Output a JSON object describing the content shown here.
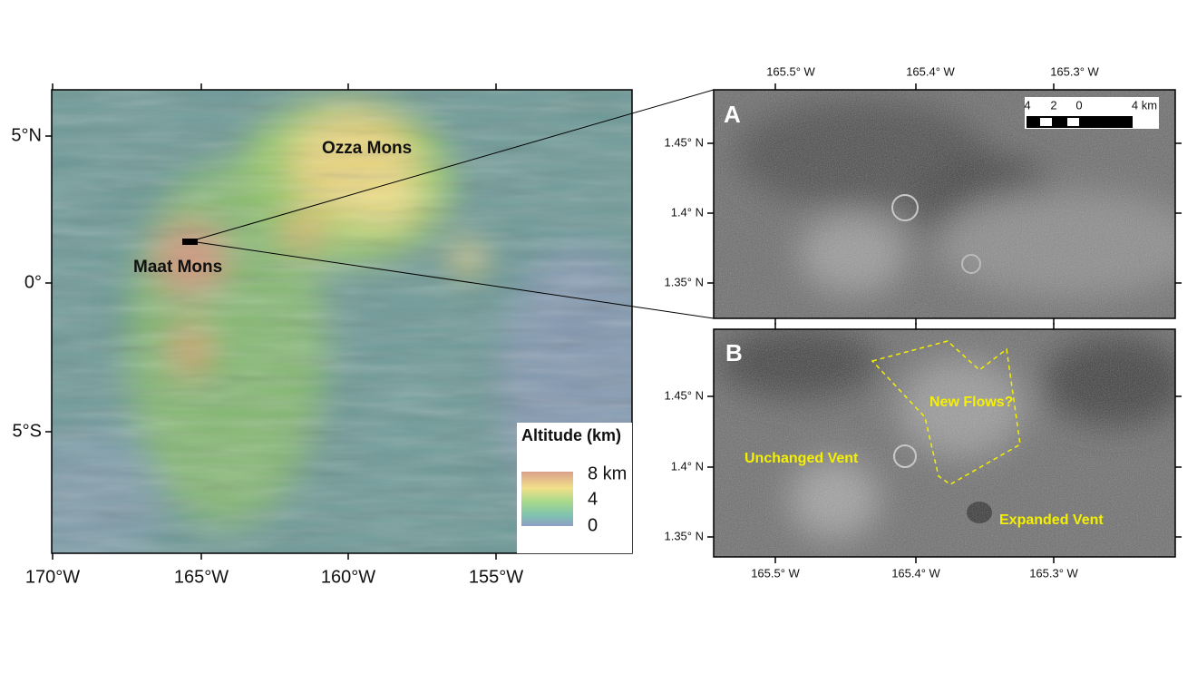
{
  "main_map": {
    "lat_labels": [
      "5°N",
      "0°",
      "5°S"
    ],
    "lon_labels": [
      "170°W",
      "165°W",
      "160°W",
      "155°W"
    ],
    "features": [
      "Ozza Mons",
      "Maat Mons"
    ],
    "legend": {
      "title": "Altitude (km)",
      "labels": [
        "8 km",
        "4",
        "0"
      ]
    }
  },
  "panels": [
    {
      "label": "A",
      "lon_labels": [
        "165.5° W",
        "165.4° W",
        "165.3° W"
      ],
      "lat_labels": [
        "1.45° N",
        "1.4° N",
        "1.35° N"
      ],
      "scale_bar": [
        "4",
        "2",
        "0",
        "4 km"
      ]
    },
    {
      "label": "B",
      "lon_labels": [
        "165.5° W",
        "165.4° W",
        "165.3° W"
      ],
      "lat_labels": [
        "1.45° N",
        "1.4° N",
        "1.35° N"
      ],
      "annotations": [
        "New Flows?",
        "Unchanged Vent",
        "Expanded Vent"
      ]
    }
  ]
}
